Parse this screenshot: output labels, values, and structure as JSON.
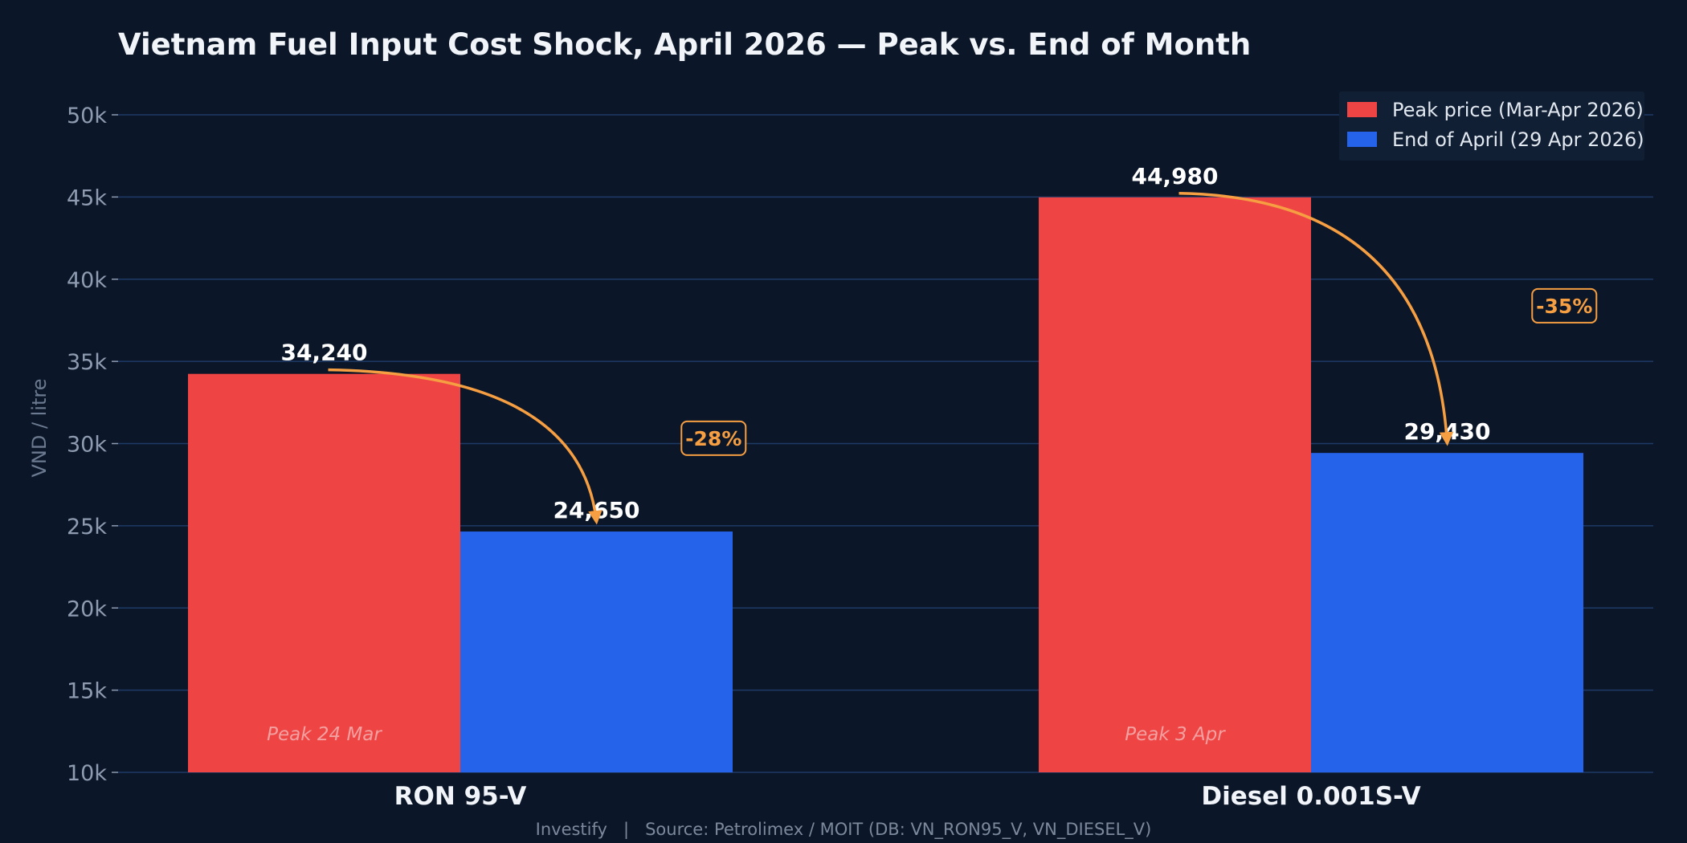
{
  "colors": {
    "background": "#0b1628",
    "grid": "#1e3a66",
    "peak": "#ef4444",
    "end": "#2563eb",
    "arrow": "#f59e42",
    "legend_bg": "#111f35"
  },
  "footer": {
    "text": "Investify   |   Source: Petrolimex / MOIT (DB: VN_RON95_V, VN_DIESEL_V)"
  },
  "chart_data": {
    "type": "bar",
    "title": "Vietnam Fuel Input Cost Shock, April 2026 — Peak vs. End of Month",
    "xlabel": "",
    "ylabel": "VND / litre",
    "ylim": [
      10000,
      50000
    ],
    "yticks": [
      10000,
      15000,
      20000,
      25000,
      30000,
      35000,
      40000,
      45000,
      50000
    ],
    "ytick_labels": [
      "10k",
      "15k",
      "20k",
      "25k",
      "30k",
      "35k",
      "40k",
      "45k",
      "50k"
    ],
    "grid": true,
    "legend_position": "top-right",
    "categories": [
      "RON 95-V",
      "Diesel 0.001S-V"
    ],
    "series": [
      {
        "name": "Peak price (Mar-Apr 2026)",
        "values": [
          34240,
          44980
        ],
        "labels": [
          "34,240",
          "44,980"
        ],
        "color": "#ef4444"
      },
      {
        "name": "End of April (29 Apr 2026)",
        "values": [
          24650,
          29430
        ],
        "labels": [
          "24,650",
          "29,430"
        ],
        "color": "#2563eb"
      }
    ],
    "annotations": {
      "peak_notes": [
        "Peak 24 Mar",
        "Peak 3 Apr"
      ],
      "change_labels": [
        "-28%",
        "-35%"
      ]
    }
  }
}
